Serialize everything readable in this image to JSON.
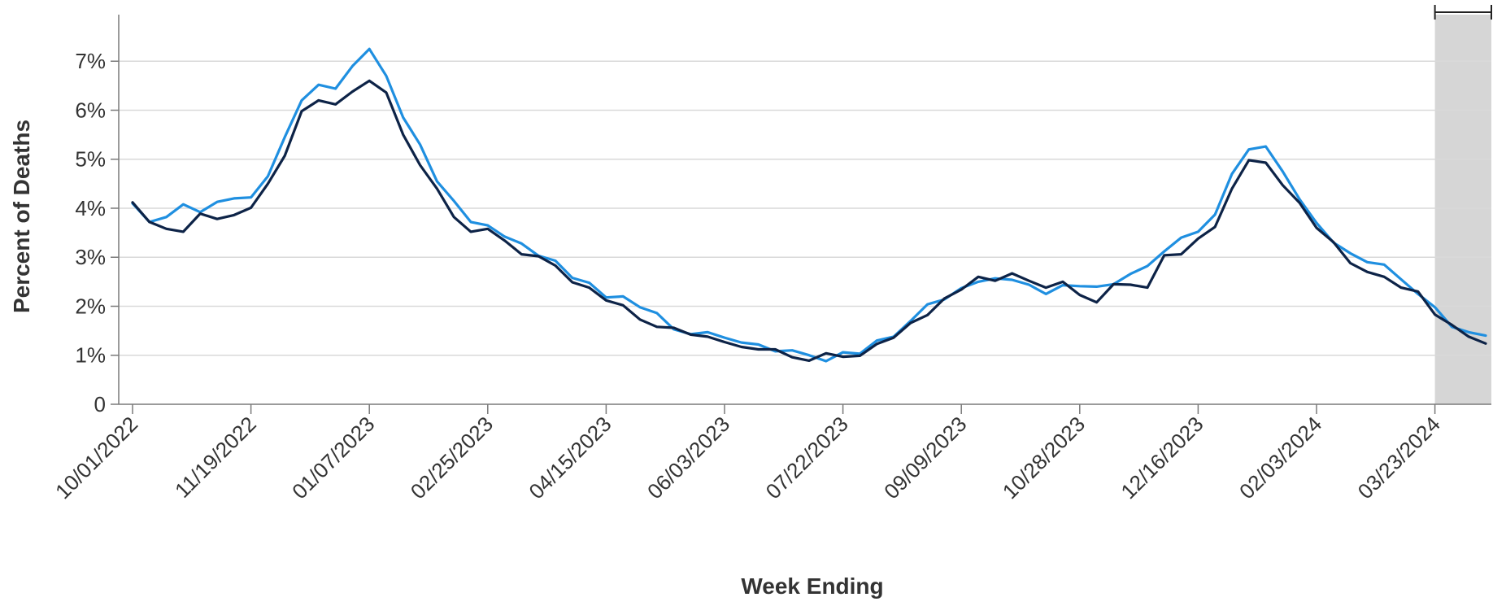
{
  "chart_data": {
    "type": "line",
    "title": "",
    "xlabel": "Week Ending",
    "ylabel": "Percent of Deaths",
    "x_tick_labels": [
      "10/01/2022",
      "11/19/2022",
      "01/07/2023",
      "02/25/2023",
      "04/15/2023",
      "06/03/2023",
      "07/22/2023",
      "09/09/2023",
      "10/28/2023",
      "12/16/2023",
      "02/03/2024",
      "03/23/2024"
    ],
    "y_tick_labels": [
      "0",
      "1%",
      "2%",
      "3%",
      "4%",
      "5%",
      "6%",
      "7%"
    ],
    "y_ticks": [
      0,
      1,
      2,
      3,
      4,
      5,
      6,
      7
    ],
    "ylim": [
      0,
      7.95
    ],
    "x_start": "10/01/2022",
    "x_end": "04/27/2024",
    "grid": "horizontal",
    "shaded_region": {
      "start": "03/23/2024",
      "end": "04/27/2024",
      "color": "#d6d6d6"
    },
    "colors": {
      "series_light": "#1f8fe0",
      "series_dark": "#0d2347",
      "grid": "#d9d9d9",
      "axis": "#7a7a7a"
    },
    "series": [
      {
        "color": "#1f8fe0",
        "values": [
          4.1,
          3.72,
          3.82,
          4.08,
          3.92,
          4.13,
          4.2,
          4.22,
          4.65,
          5.45,
          6.2,
          6.52,
          6.44,
          6.9,
          7.25,
          6.7,
          5.85,
          5.3,
          4.55,
          4.15,
          3.72,
          3.65,
          3.42,
          3.28,
          3.03,
          2.93,
          2.58,
          2.48,
          2.18,
          2.2,
          1.98,
          1.86,
          1.53,
          1.43,
          1.47,
          1.36,
          1.26,
          1.22,
          1.08,
          1.1,
          1.0,
          0.88,
          1.06,
          1.03,
          1.3,
          1.38,
          1.7,
          2.04,
          2.14,
          2.37,
          2.5,
          2.57,
          2.54,
          2.44,
          2.25,
          2.43,
          2.41,
          2.4,
          2.45,
          2.66,
          2.82,
          3.12,
          3.4,
          3.52,
          3.87,
          4.7,
          5.2,
          5.26,
          4.75,
          4.18,
          3.7,
          3.3,
          3.08,
          2.9,
          2.85,
          2.55,
          2.25,
          1.98,
          1.58,
          1.47,
          1.4
        ]
      },
      {
        "color": "#0d2347",
        "values": [
          4.12,
          3.72,
          3.58,
          3.52,
          3.89,
          3.78,
          3.86,
          4.01,
          4.5,
          5.07,
          5.98,
          6.2,
          6.12,
          6.38,
          6.6,
          6.36,
          5.5,
          4.88,
          4.4,
          3.82,
          3.52,
          3.58,
          3.34,
          3.06,
          3.02,
          2.83,
          2.49,
          2.38,
          2.12,
          2.02,
          1.73,
          1.58,
          1.56,
          1.42,
          1.38,
          1.27,
          1.17,
          1.12,
          1.12,
          0.96,
          0.89,
          1.04,
          0.97,
          0.99,
          1.23,
          1.36,
          1.66,
          1.82,
          2.16,
          2.34,
          2.6,
          2.52,
          2.67,
          2.52,
          2.38,
          2.5,
          2.23,
          2.08,
          2.45,
          2.44,
          2.38,
          3.04,
          3.06,
          3.38,
          3.62,
          4.4,
          4.98,
          4.93,
          4.47,
          4.11,
          3.6,
          3.31,
          2.88,
          2.7,
          2.6,
          2.38,
          2.3,
          1.83,
          1.62,
          1.38,
          1.24
        ]
      }
    ]
  }
}
